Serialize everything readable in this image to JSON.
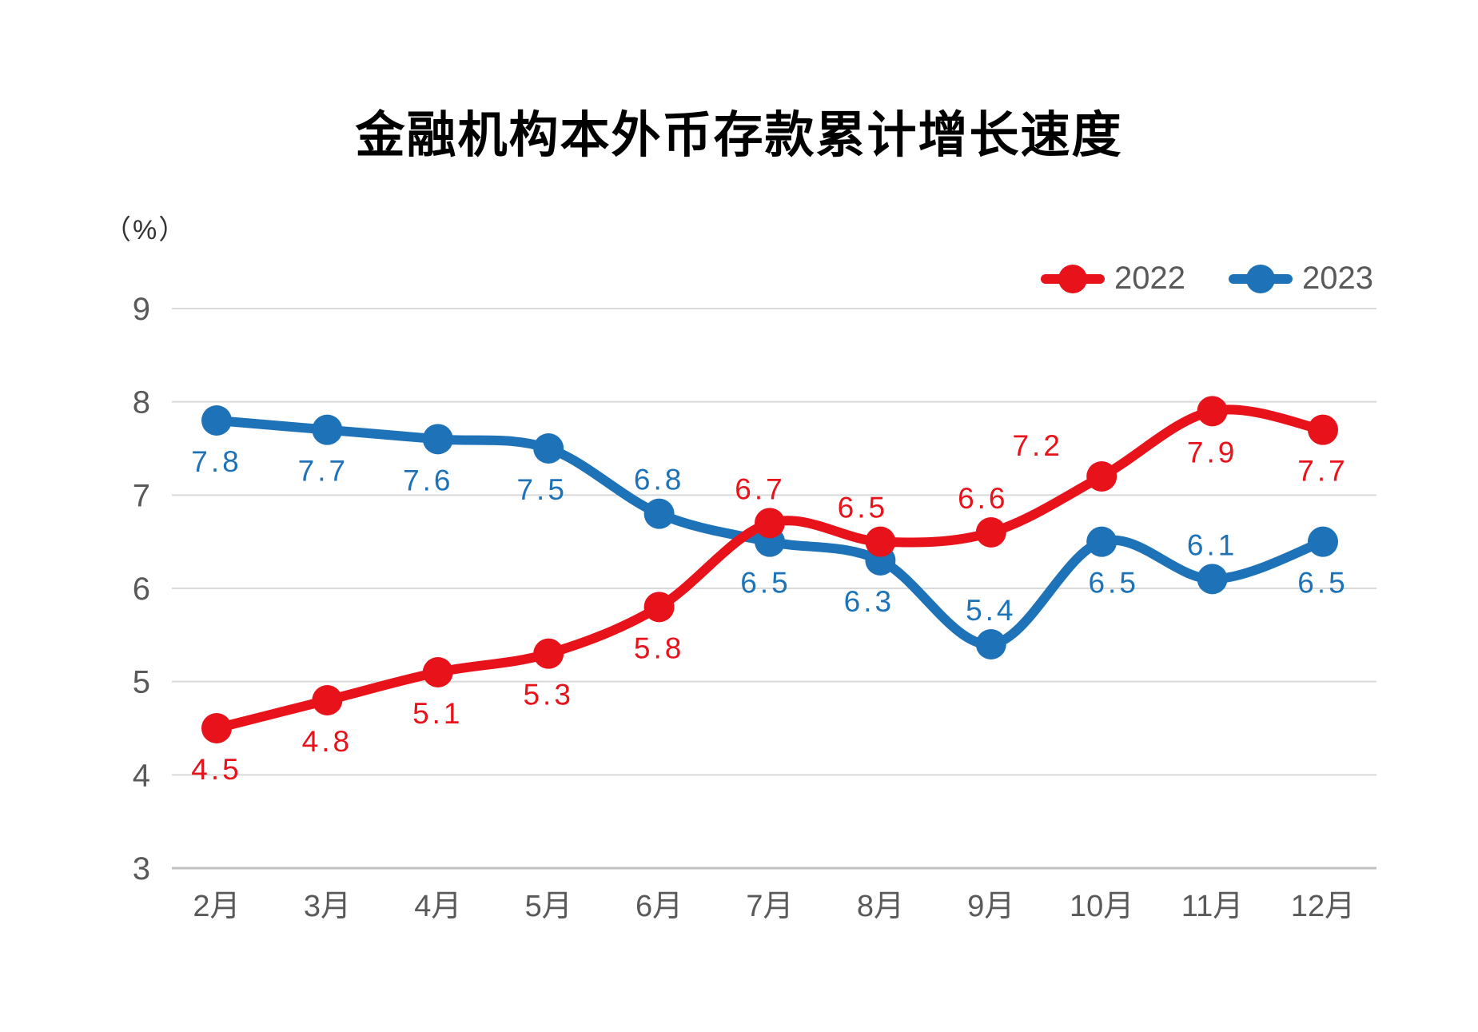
{
  "chart_data": {
    "type": "line",
    "title": "金融机构本外币存款累计增长速度",
    "y_axis_unit": "（%）",
    "categories": [
      "2月",
      "3月",
      "4月",
      "5月",
      "6月",
      "7月",
      "8月",
      "9月",
      "10月",
      "11月",
      "12月"
    ],
    "series": [
      {
        "name": "2022",
        "color": "#e8121a",
        "values": [
          4.5,
          4.8,
          5.1,
          5.3,
          5.8,
          6.7,
          6.5,
          6.6,
          7.2,
          7.9,
          7.7
        ],
        "label_positions": [
          "below",
          "below",
          "below",
          "below",
          "below",
          "above",
          "above",
          "above",
          "above-left",
          "below",
          "below"
        ]
      },
      {
        "name": "2023",
        "color": "#1e73b8",
        "values": [
          7.8,
          7.7,
          7.6,
          7.5,
          6.8,
          6.5,
          6.3,
          5.4,
          6.5,
          6.1,
          6.5
        ],
        "label_positions": [
          "below",
          "below",
          "below",
          "below",
          "above",
          "below",
          "below",
          "above",
          "below",
          "above",
          "below"
        ]
      }
    ],
    "yticks": [
      9,
      8,
      7,
      6,
      5,
      4,
      3
    ],
    "ylim": [
      3,
      9
    ],
    "grid": true,
    "legend_position": "top-right",
    "xlabel": "",
    "ylabel": "（%）",
    "colors": {
      "grid": "#d9d9d9",
      "axis_line": "#c2c2c2",
      "tick_text": "#595959",
      "title_text": "#000000",
      "legend_text": "#595959"
    }
  }
}
